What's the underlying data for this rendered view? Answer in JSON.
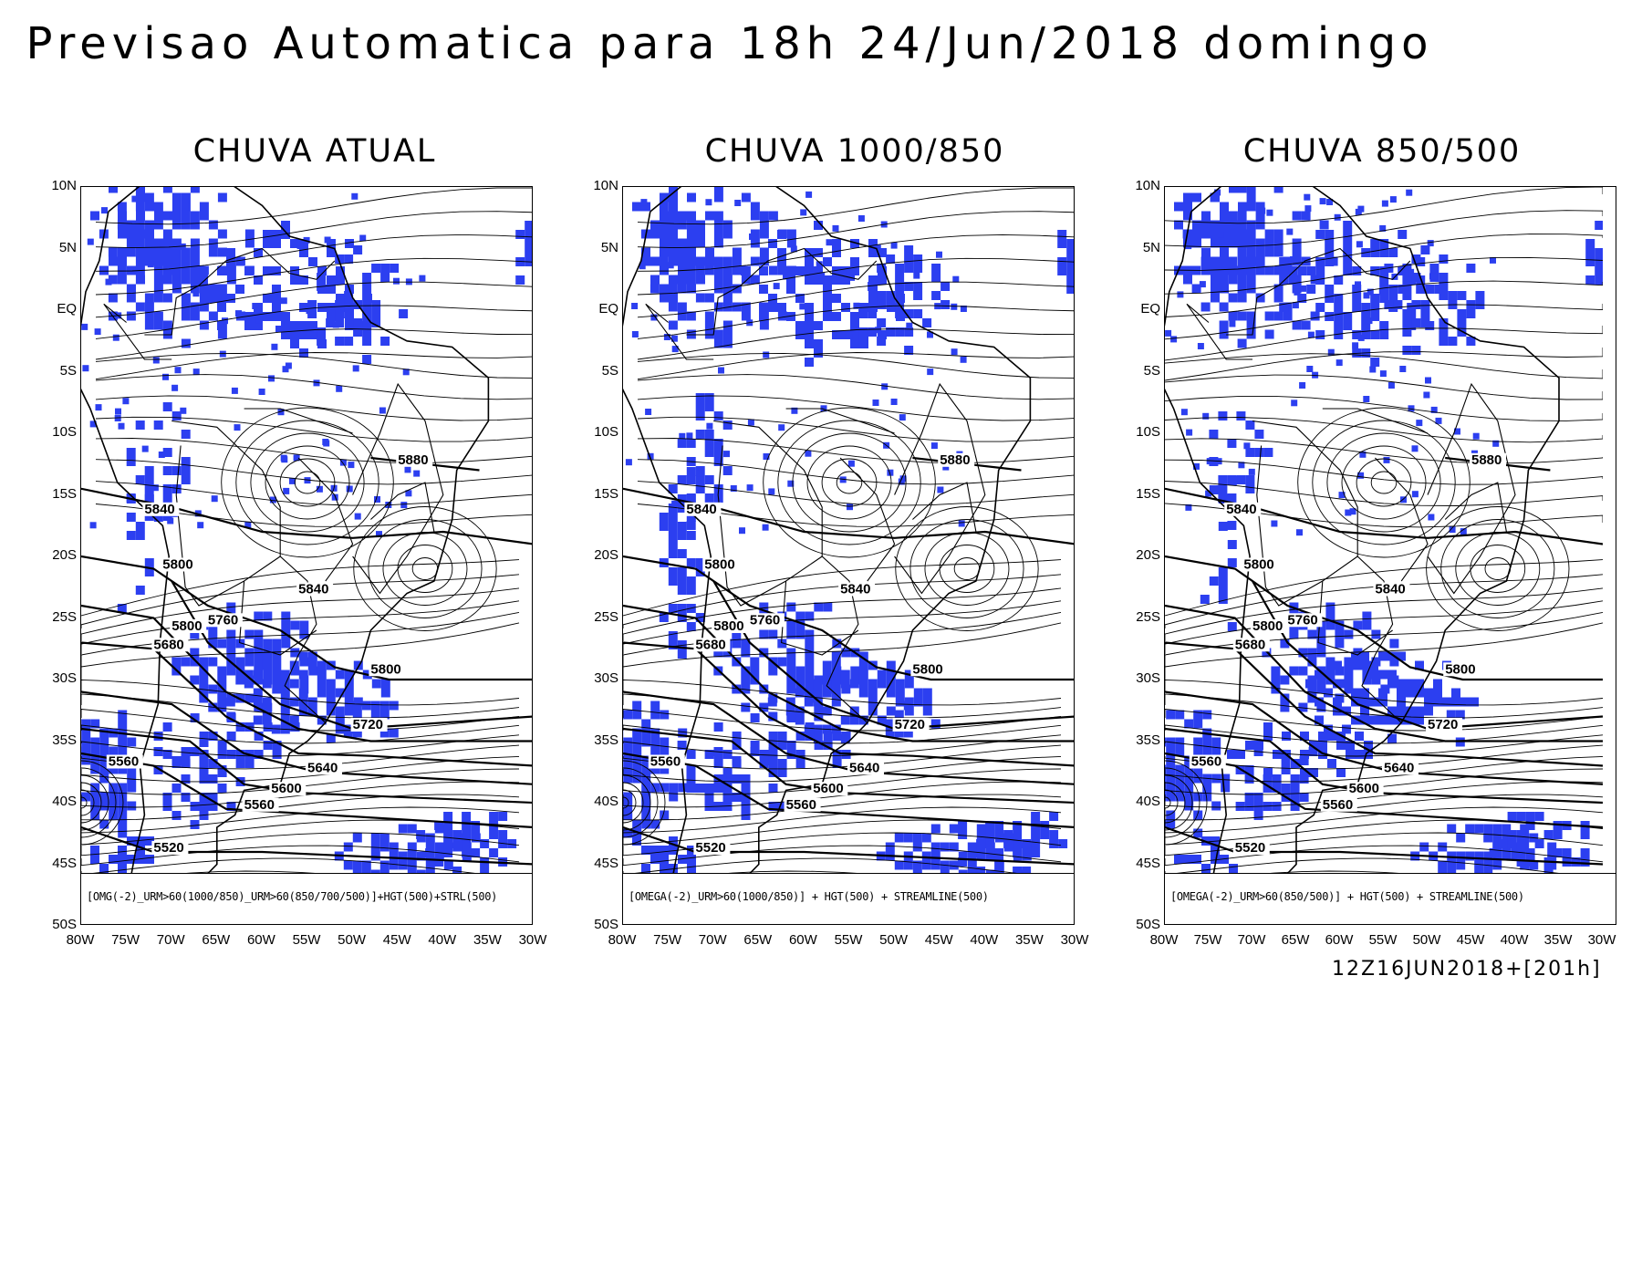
{
  "title": "Previsao Automatica para 18h 24/Jun/2018 domingo",
  "run_stamp": "12Z16JUN2018+[201h]",
  "colors": {
    "precip": "#2c3ff0",
    "lines": "#000000",
    "background": "#ffffff"
  },
  "lat_ticks": [
    "10N",
    "5N",
    "EQ",
    "5S",
    "10S",
    "15S",
    "20S",
    "25S",
    "30S",
    "35S",
    "40S",
    "45S",
    "50S"
  ],
  "lon_ticks": [
    "80W",
    "75W",
    "70W",
    "65W",
    "60W",
    "55W",
    "50W",
    "45W",
    "40W",
    "35W",
    "30W"
  ],
  "height_contours": [
    "5880",
    "5840",
    "5800",
    "5760",
    "5720",
    "5680",
    "5640",
    "5600",
    "5560",
    "5520"
  ],
  "panels": [
    {
      "title": "CHUVA ATUAL",
      "caption": "[OMG(-2)_URM>60(1000/850)_URM>60(850/700/500)]+HGT(500)+STRL(500)"
    },
    {
      "title": "CHUVA 1000/850",
      "caption": "[OMEGA(-2)_URM>60(1000/850)] + HGT(500) + STREAMLINE(500)"
    },
    {
      "title": "CHUVA 850/500",
      "caption": "[OMEGA(-2)_URM>60(850/500)] + HGT(500) + STREAMLINE(500)"
    }
  ]
}
